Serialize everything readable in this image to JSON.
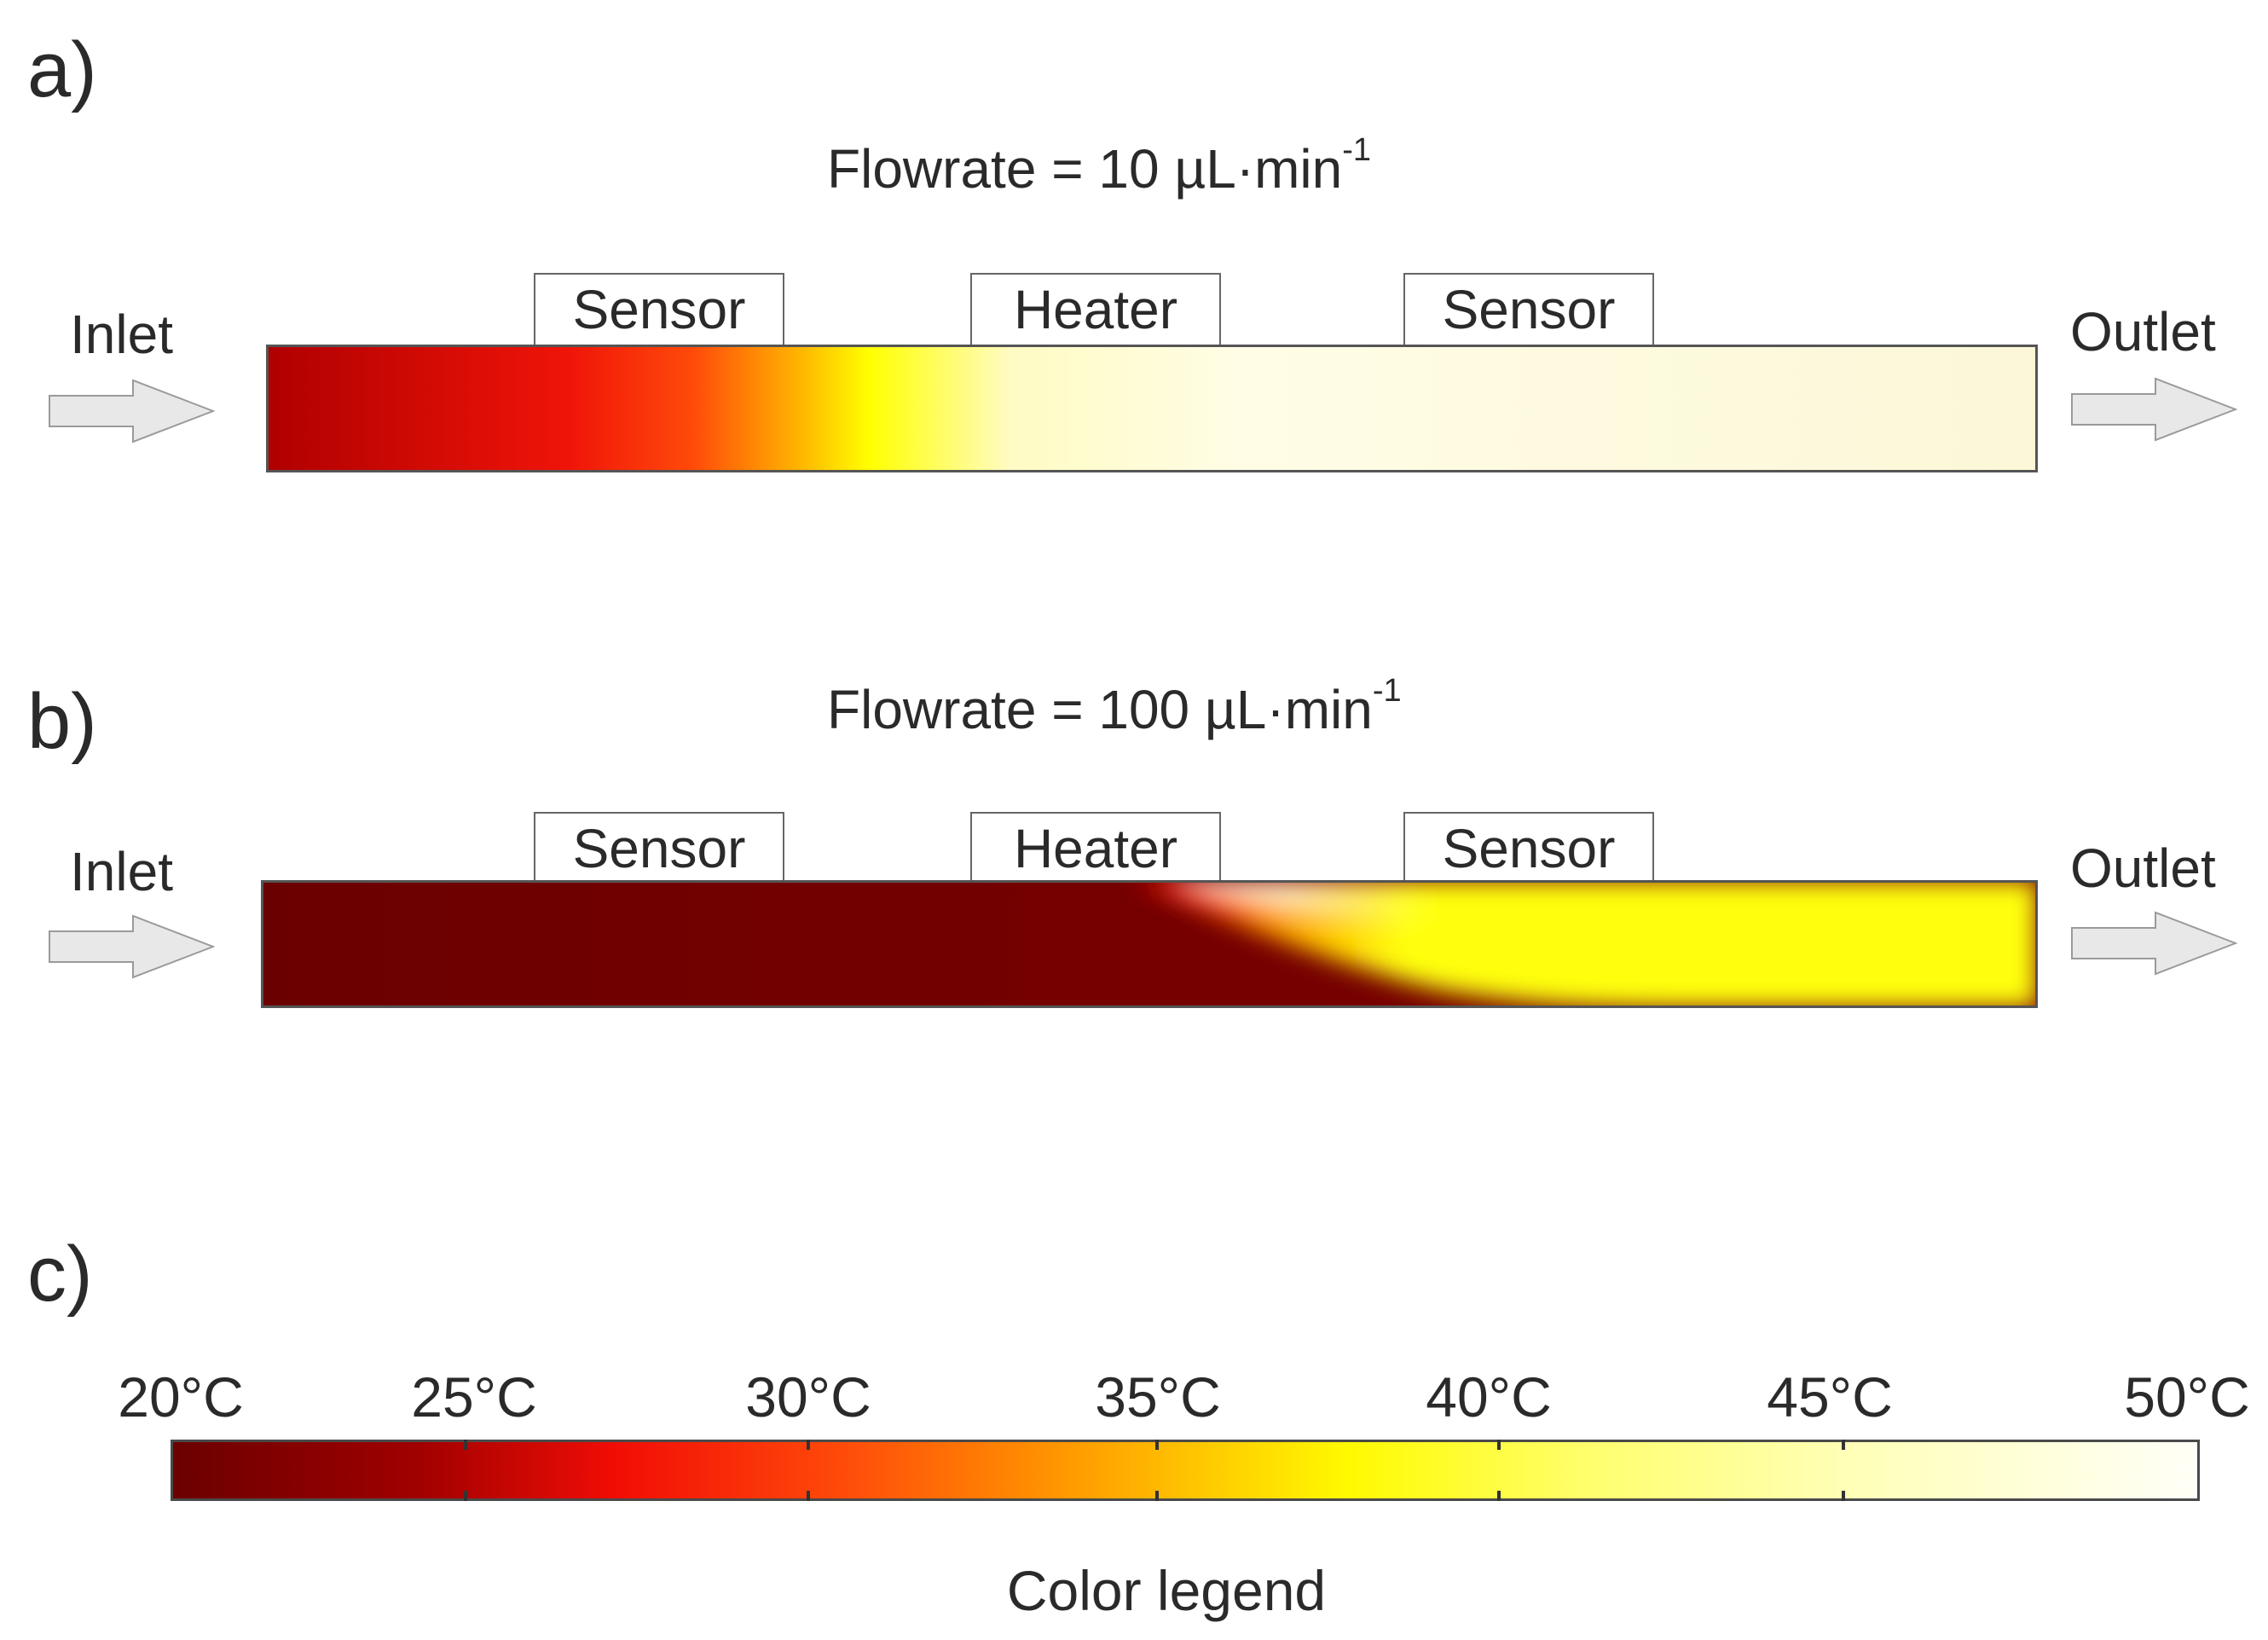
{
  "panels": [
    {
      "letter": "a)",
      "flowrate_text": "Flowrate = 10 µL·min",
      "flowrate_exp": "-1",
      "inlet_label": "Inlet",
      "outlet_label": "Outlet",
      "boxes": [
        "Sensor",
        "Heater",
        "Sensor"
      ]
    },
    {
      "letter": "b)",
      "flowrate_text": "Flowrate = 100 µL·min",
      "flowrate_exp": "-1",
      "inlet_label": "Inlet",
      "outlet_label": "Outlet",
      "boxes": [
        "Sensor",
        "Heater",
        "Sensor"
      ]
    }
  ],
  "legend": {
    "letter": "c)",
    "title": "Color legend",
    "ticks": [
      "20°C",
      "25°C",
      "30°C",
      "35°C",
      "40°C",
      "45°C",
      "50°C"
    ],
    "range": [
      20,
      50
    ],
    "colors": [
      "#6b0000",
      "#a00000",
      "#f20d05",
      "#ff4a0a",
      "#ff9f00",
      "#fffa00",
      "#ffff9c",
      "#fffff8"
    ]
  },
  "colors": {
    "arrow_fill": "#e8e8e8",
    "arrow_stroke": "#9a9a9a",
    "channel_a_gradient": [
      "#b00000",
      "#f01408",
      "#ff4a0a",
      "#ffb400",
      "#ffff00",
      "#fffccf",
      "#fffde6",
      "#fbf7d8"
    ],
    "channel_b_base": "#6b0000",
    "channel_b_hot": "#ffff0a"
  }
}
